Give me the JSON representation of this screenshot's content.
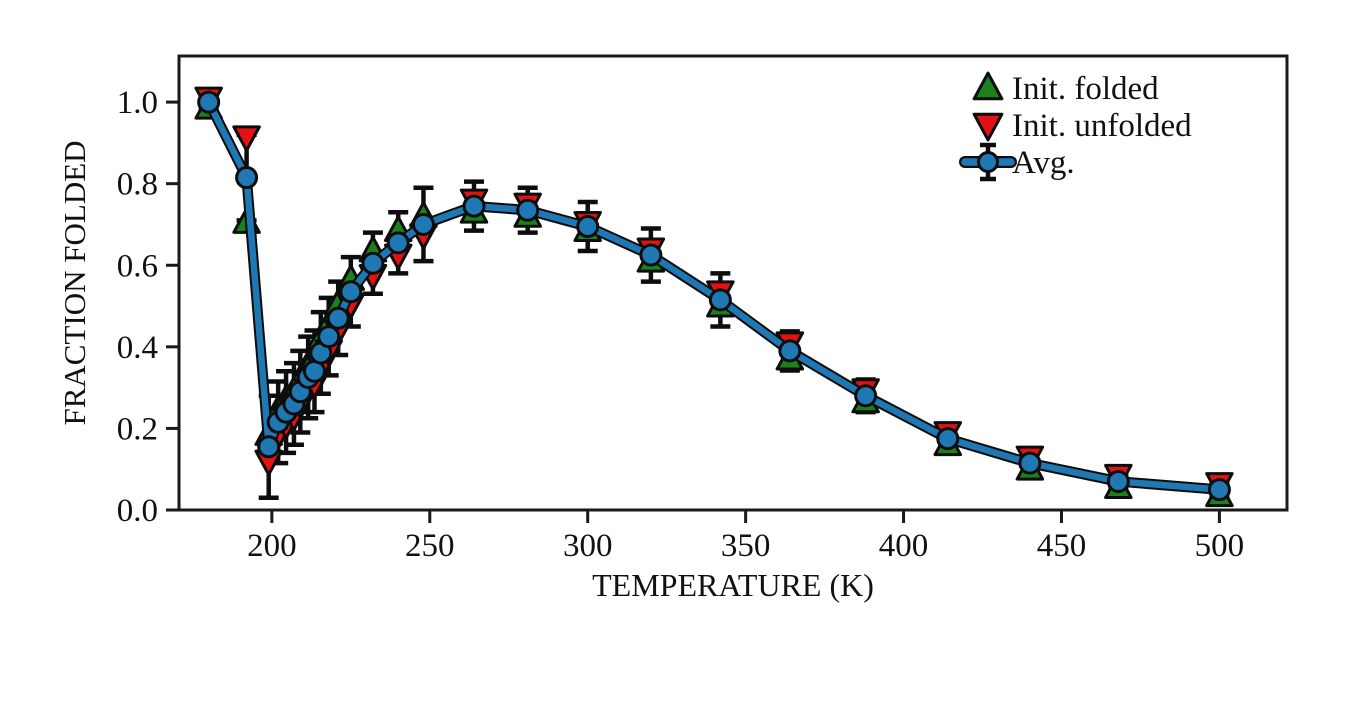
{
  "figure": {
    "background": "#ffffff"
  },
  "colors": {
    "axis": "#1a1a1a",
    "text": "#111111",
    "error_bar": "#0d0d0d",
    "init_folded": "#1d801d",
    "init_unfolded": "#e31212",
    "avg_line": "#1f77b4",
    "marker_edge": "#0d0d0d"
  },
  "chart_data": {
    "type": "line",
    "title": "",
    "xlabel": "TEMPERATURE (K)",
    "ylabel": "FRACTION FOLDED",
    "xlim": [
      170.6,
      521.4
    ],
    "ylim": [
      0,
      1.113
    ],
    "xticks": [
      200,
      250,
      300,
      350,
      400,
      450,
      500
    ],
    "xtick_labels": [
      "200",
      "250",
      "300",
      "350",
      "400",
      "450",
      "500"
    ],
    "yticks": [
      0.0,
      0.2,
      0.4,
      0.6,
      0.8,
      1.0
    ],
    "ytick_labels": [
      "0.0",
      "0.2",
      "0.4",
      "0.6",
      "0.8",
      "1.0"
    ],
    "grid": false,
    "legend_position": "upper right",
    "x": [
      180,
      192,
      199,
      202,
      204.5,
      207,
      209,
      211.5,
      213.5,
      215.5,
      218,
      221,
      225,
      232,
      240,
      248,
      264,
      281,
      300,
      320,
      342,
      364,
      388,
      414,
      440,
      468,
      500
    ],
    "series": [
      {
        "name": "Init. folded",
        "marker": "triangle-up",
        "color": "#1d801d",
        "values": [
          0.985,
          0.705,
          0.185,
          0.245,
          0.27,
          0.29,
          0.32,
          0.355,
          0.375,
          0.42,
          0.455,
          0.505,
          0.565,
          0.635,
          0.685,
          0.72,
          0.73,
          0.72,
          0.685,
          0.61,
          0.5,
          0.37,
          0.265,
          0.16,
          0.1,
          0.055,
          0.035
        ]
      },
      {
        "name": "Init. unfolded",
        "marker": "triangle-down",
        "color": "#e31212",
        "values": [
          1.01,
          0.915,
          0.12,
          0.185,
          0.21,
          0.23,
          0.26,
          0.295,
          0.31,
          0.35,
          0.39,
          0.44,
          0.505,
          0.575,
          0.625,
          0.675,
          0.76,
          0.75,
          0.705,
          0.64,
          0.535,
          0.41,
          0.295,
          0.19,
          0.13,
          0.085,
          0.065
        ]
      },
      {
        "name": "Avg.",
        "marker": "circle-line",
        "color": "#1f77b4",
        "values": [
          1.0,
          0.815,
          0.155,
          0.215,
          0.24,
          0.26,
          0.29,
          0.325,
          0.34,
          0.385,
          0.425,
          0.47,
          0.535,
          0.605,
          0.655,
          0.7,
          0.745,
          0.735,
          0.695,
          0.625,
          0.515,
          0.39,
          0.28,
          0.175,
          0.115,
          0.07,
          0.05
        ],
        "errors": [
          0.015,
          0.105,
          0.125,
          0.1,
          0.1,
          0.1,
          0.1,
          0.1,
          0.1,
          0.1,
          0.095,
          0.09,
          0.085,
          0.075,
          0.075,
          0.09,
          0.06,
          0.055,
          0.06,
          0.065,
          0.065,
          0.048,
          0.04,
          0.035,
          0.025,
          0.018,
          0.02
        ]
      }
    ],
    "legend": {
      "items": [
        "Init. folded",
        "Init. unfolded",
        "Avg."
      ]
    }
  }
}
